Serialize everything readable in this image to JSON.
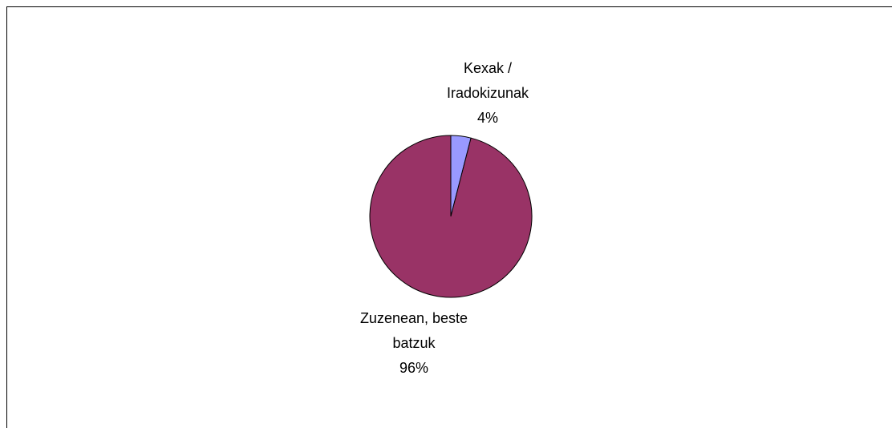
{
  "chart_data": {
    "type": "pie",
    "categories": [
      "Kexak / Iradokizunak",
      "Zuzenean, beste batzuk"
    ],
    "values": [
      4,
      96
    ],
    "value_labels": [
      "4%",
      "96%"
    ],
    "colors": [
      "#9999ff",
      "#993366"
    ]
  }
}
